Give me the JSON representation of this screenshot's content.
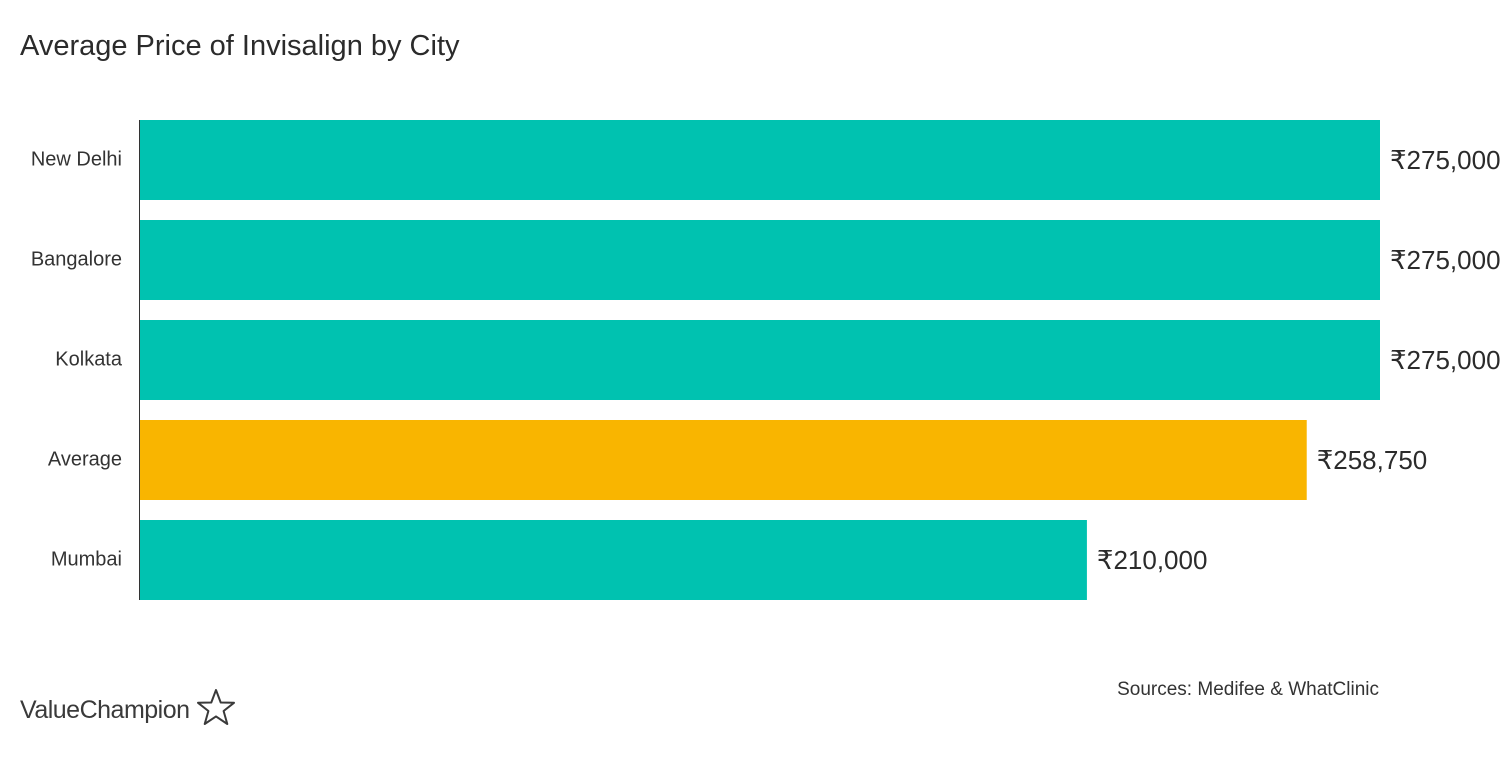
{
  "chart_data": {
    "type": "bar",
    "orientation": "horizontal",
    "title": "Average Price of Invisalign by City",
    "categories": [
      "New Delhi",
      "Bangalore",
      "Kolkata",
      "Average",
      "Mumbai"
    ],
    "values": [
      275000,
      275000,
      275000,
      258750,
      210000
    ],
    "value_labels": [
      "₹275,000",
      "₹275,000",
      "₹275,000",
      "₹258,750",
      "₹210,000"
    ],
    "bar_colors": [
      "#00c2b0",
      "#00c2b0",
      "#00c2b0",
      "#f9b500",
      "#00c2b0"
    ],
    "xlim": [
      0,
      275000
    ],
    "grid": false,
    "legend": "none"
  },
  "source_text": "Sources: Medifee & WhatClinic",
  "brand": {
    "name": "ValueChampion",
    "icon": "star-outline-icon"
  }
}
